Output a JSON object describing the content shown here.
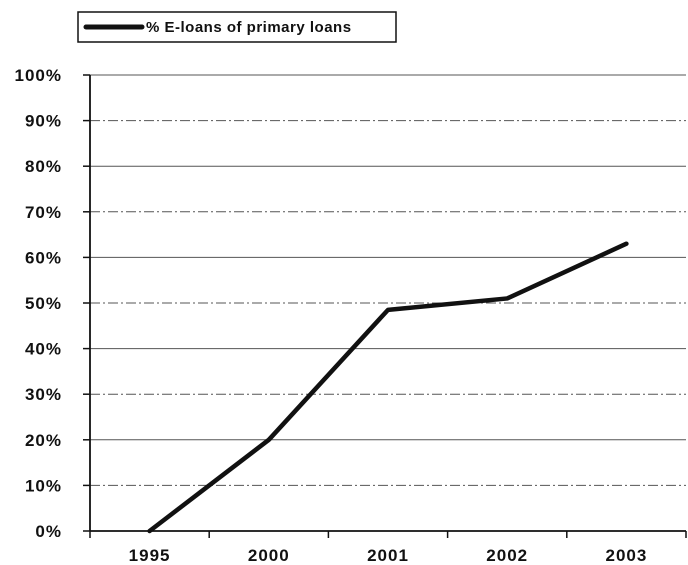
{
  "chart_data": {
    "type": "line",
    "categories": [
      "1995",
      "2000",
      "2001",
      "2002",
      "2003"
    ],
    "series": [
      {
        "name": "% E-loans of primary loans",
        "values": [
          0,
          20,
          48.5,
          51,
          63
        ]
      }
    ],
    "ylim": [
      0,
      100
    ],
    "y_ticks": [
      "0%",
      "10%",
      "20%",
      "30%",
      "40%",
      "50%",
      "60%",
      "70%",
      "80%",
      "90%",
      "100%"
    ],
    "title": "",
    "xlabel": "",
    "ylabel": "",
    "grid": true,
    "legend_position": "top-left",
    "colors": {
      "line": "#111111",
      "grid": "#555555",
      "axis": "#111111"
    }
  }
}
